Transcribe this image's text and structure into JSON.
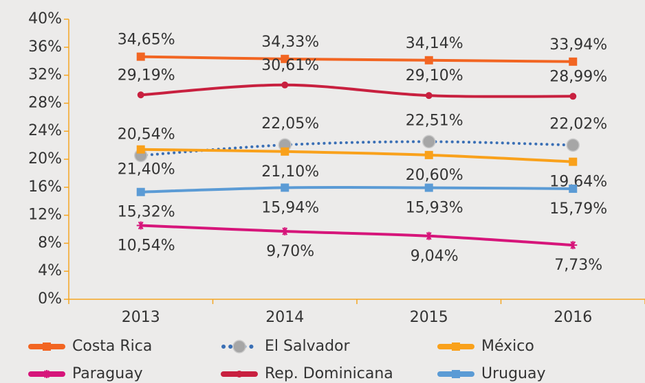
{
  "chart_data": {
    "type": "line",
    "categories": [
      "2013",
      "2014",
      "2015",
      "2016"
    ],
    "ylim": [
      0,
      40
    ],
    "yticks": [
      {
        "value": 0,
        "label": "0%"
      },
      {
        "value": 4,
        "label": "4%"
      },
      {
        "value": 8,
        "label": "8%"
      },
      {
        "value": 12,
        "label": "12%"
      },
      {
        "value": 16,
        "label": "16%"
      },
      {
        "value": 20,
        "label": "20%"
      },
      {
        "value": 24,
        "label": "24%"
      },
      {
        "value": 28,
        "label": "28%"
      },
      {
        "value": 32,
        "label": "32%"
      },
      {
        "value": 36,
        "label": "36%"
      },
      {
        "value": 40,
        "label": "40%"
      }
    ],
    "series": [
      {
        "name": "Costa Rica",
        "color": "#f26522",
        "marker": "square",
        "values": [
          34.65,
          34.33,
          34.14,
          33.94
        ],
        "value_labels": [
          "34,65%",
          "34,33%",
          "34,14%",
          "33,94%"
        ]
      },
      {
        "name": "El Salvador",
        "color": "#3a6fb5",
        "marker": "circle",
        "dashed": true,
        "values": [
          20.54,
          22.05,
          22.51,
          22.02
        ],
        "value_labels": [
          "20,54%",
          "22,05%",
          "22,51%",
          "22,02%"
        ]
      },
      {
        "name": "México",
        "color": "#f9a11b",
        "marker": "square",
        "values": [
          21.4,
          21.1,
          20.6,
          19.64
        ],
        "value_labels": [
          "21,40%",
          "21,10%",
          "20,60%",
          "19,64%"
        ]
      },
      {
        "name": "Paraguay",
        "color": "#d6157a",
        "marker": "star",
        "values": [
          10.54,
          9.7,
          9.04,
          7.73
        ],
        "value_labels": [
          "10,54%",
          "9,70%",
          "9,04%",
          "7,73%"
        ]
      },
      {
        "name": "Rep. Dominicana",
        "color": "#c8203f",
        "marker": "dot",
        "values": [
          29.19,
          30.61,
          29.1,
          28.99
        ],
        "value_labels": [
          "29,19%",
          "30,61%",
          "29,10%",
          "28,99%"
        ]
      },
      {
        "name": "Uruguay",
        "color": "#5b9bd5",
        "marker": "square",
        "values": [
          15.32,
          15.94,
          15.93,
          15.79
        ],
        "value_labels": [
          "15,32%",
          "15,94%",
          "15,93%",
          "15,79%"
        ]
      }
    ]
  }
}
